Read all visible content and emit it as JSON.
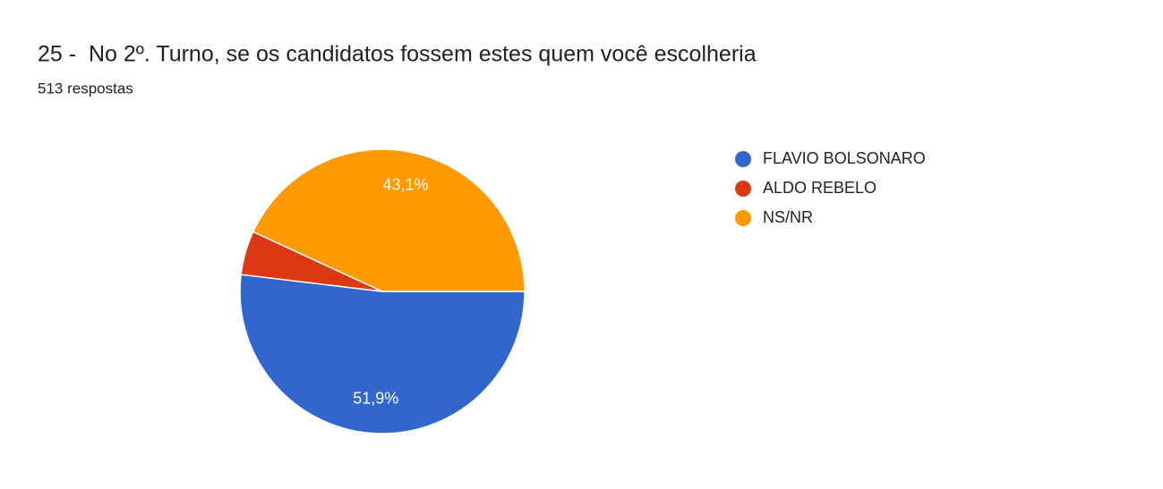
{
  "chart_data": {
    "type": "pie",
    "title": "25 -  No 2º. Turno, se os candidatos fossem estes quem você escolheria",
    "subtitle": "513 respostas",
    "categories": [
      "FLAVIO BOLSONARO",
      "ALDO REBELO",
      "NS/NR"
    ],
    "values": [
      51.9,
      5.0,
      43.1
    ],
    "value_labels": [
      "51,9%",
      null,
      "43,1%"
    ],
    "colors": [
      "#3366cc",
      "#dc3912",
      "#ff9900"
    ],
    "legend": "right"
  }
}
